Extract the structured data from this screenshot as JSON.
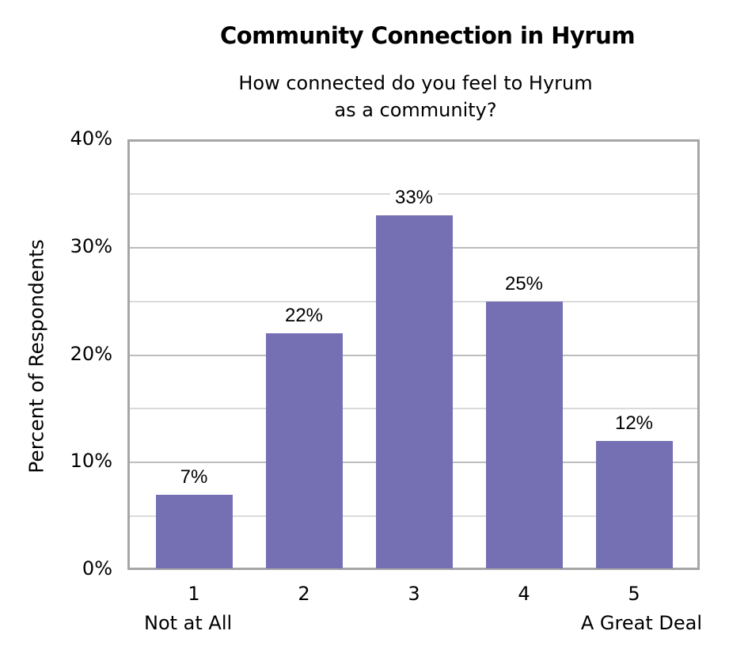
{
  "chart_data": {
    "type": "bar",
    "title": "Community Connection in Hyrum",
    "subtitle_line1": "How connected do you feel to Hyrum",
    "subtitle_line2": "as a community?",
    "xlabel": "",
    "ylabel": "Percent of Respondents",
    "categories": [
      "1",
      "2",
      "3",
      "4",
      "5"
    ],
    "category_sublabels": [
      "Not at All",
      "",
      "",
      "",
      "A Great Deal"
    ],
    "values": [
      7,
      22,
      33,
      25,
      12
    ],
    "data_labels": [
      "7%",
      "22%",
      "33%",
      "25%",
      "12%"
    ],
    "ylim": [
      0,
      40
    ],
    "yticks": [
      0,
      10,
      20,
      30,
      40
    ],
    "ytick_labels": [
      "0%",
      "10%",
      "20%",
      "30%",
      "40%"
    ],
    "grid": true,
    "minor_grid": [
      5,
      15,
      25,
      35
    ],
    "bar_color": "#7570b3",
    "legend": null
  }
}
